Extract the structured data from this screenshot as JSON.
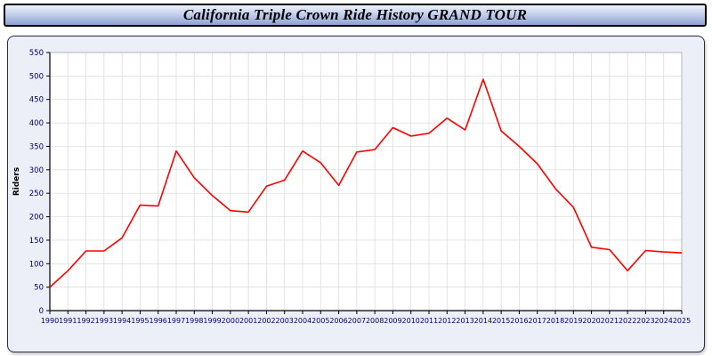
{
  "chart_data": {
    "type": "line",
    "title": "California Triple Crown Ride History GRAND TOUR",
    "xlabel": "",
    "ylabel": "Riders",
    "ylim": [
      0,
      550
    ],
    "ytick_step": 50,
    "grid": true,
    "line_color": "#ff0000",
    "categories": [
      "1990",
      "1991",
      "1992",
      "1993",
      "1994",
      "1995",
      "1996",
      "1997",
      "1998",
      "1999",
      "2000",
      "2001",
      "2002",
      "2003",
      "2004",
      "2005",
      "2006",
      "2007",
      "2008",
      "2009",
      "2010",
      "2011",
      "2012",
      "2013",
      "2014",
      "2015",
      "2016",
      "2017",
      "2018",
      "2019",
      "2020",
      "2021",
      "2022",
      "2023",
      "2024",
      "2025"
    ],
    "series": [
      {
        "name": "Riders",
        "values": [
          50,
          85,
          127,
          127,
          155,
          225,
          223,
          340,
          283,
          245,
          213,
          210,
          265,
          278,
          340,
          315,
          267,
          338,
          343,
          390,
          372,
          378,
          410,
          385,
          493,
          383,
          350,
          313,
          260,
          220,
          135,
          130,
          85,
          128,
          125,
          123
        ]
      }
    ]
  },
  "colors": {
    "accent_line": "#ff0000",
    "panel_bg": "#eceef8",
    "plot_bg": "#ffffff",
    "grid": "#d9d9d9",
    "axis": "#000000",
    "tick_label": "#000066"
  }
}
